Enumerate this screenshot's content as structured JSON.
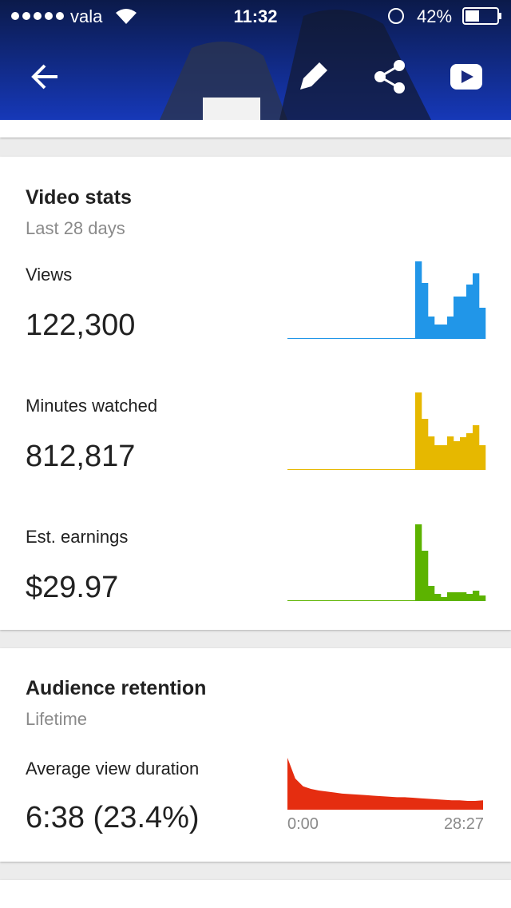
{
  "status_bar": {
    "carrier": "vala",
    "time": "11:32",
    "battery": "42%"
  },
  "video_stats": {
    "title": "Video stats",
    "period": "Last 28 days",
    "metrics": [
      {
        "label": "Views",
        "value": "122,300",
        "chart": {
          "type": "bar",
          "color": "#2196e8",
          "ylim": [
            0,
            100
          ],
          "values": [
            0,
            0,
            0,
            0,
            0,
            0,
            0,
            0,
            0,
            0,
            0,
            0,
            0,
            0,
            0,
            0,
            0,
            0,
            0,
            0,
            96,
            69,
            27,
            17,
            17,
            27,
            52,
            52,
            67,
            81,
            38
          ]
        }
      },
      {
        "label": "Minutes watched",
        "value": "812,817",
        "chart": {
          "type": "bar",
          "color": "#e6b800",
          "ylim": [
            0,
            100
          ],
          "values": [
            0,
            0,
            0,
            0,
            0,
            0,
            0,
            0,
            0,
            0,
            0,
            0,
            0,
            0,
            0,
            0,
            0,
            0,
            0,
            0,
            96,
            63,
            41,
            30,
            30,
            41,
            35,
            40,
            45,
            55,
            30
          ]
        }
      },
      {
        "label": "Est. earnings",
        "value": "$29.97",
        "chart": {
          "type": "bar",
          "color": "#5cb300",
          "ylim": [
            0,
            100
          ],
          "values": [
            0,
            0,
            0,
            0,
            0,
            0,
            0,
            0,
            0,
            0,
            0,
            0,
            0,
            0,
            0,
            0,
            0,
            0,
            0,
            0,
            95,
            62,
            18,
            8,
            4,
            10,
            10,
            10,
            8,
            12,
            6
          ]
        }
      }
    ]
  },
  "audience_retention": {
    "title": "Audience retention",
    "period": "Lifetime",
    "metric_label": "Average view duration",
    "metric_value": "6:38 (23.4%)",
    "chart": {
      "type": "area",
      "color": "#e52d10",
      "ylim": [
        0,
        100
      ],
      "values": [
        100,
        60,
        45,
        40,
        37,
        35,
        33,
        31,
        30,
        29,
        28,
        27,
        26,
        25,
        24,
        24,
        23,
        22,
        21,
        20,
        19,
        18,
        18,
        17,
        17,
        18
      ],
      "x_start_label": "0:00",
      "x_end_label": "28:27"
    }
  }
}
